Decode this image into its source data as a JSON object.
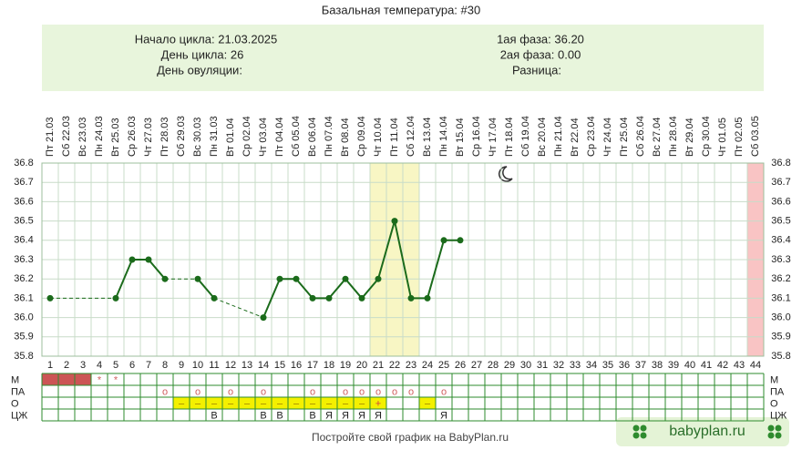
{
  "chart_data": {
    "type": "line",
    "title": "Базальная температура: #30",
    "info": {
      "left": [
        "Начало цикла: 21.03.2025",
        "День цикла: 26",
        "День овуляции:"
      ],
      "right": [
        "1ая фаза: 36.20",
        "2ая фаза: 0.00",
        "Разница:"
      ]
    },
    "categories": [
      "Пт 21.03",
      "Сб 22.03",
      "Вс 23.03",
      "Пн 24.03",
      "Вт 25.03",
      "Ср 26.03",
      "Чт 27.03",
      "Пт 28.03",
      "Сб 29.03",
      "Вс 30.03",
      "Пн 31.03",
      "Вт 01.04",
      "Ср 02.04",
      "Чт 03.04",
      "Пт 04.04",
      "Сб 05.04",
      "Вс 06.04",
      "Пн 07.04",
      "Вт 08.04",
      "Ср 09.04",
      "Чт 10.04",
      "Пт 11.04",
      "Сб 12.04",
      "Вс 13.04",
      "Пн 14.04",
      "Вт 15.04",
      "Ср 16.04",
      "Чт 17.04",
      "Пт 18.04",
      "Сб 19.04",
      "Вс 20.04",
      "Пн 21.04",
      "Вт 22.04",
      "Ср 23.04",
      "Чт 24.04",
      "Пт 25.04",
      "Сб 26.04",
      "Вс 27.04",
      "Пн 28.04",
      "Вт 29.04",
      "Ср 30.04",
      "Чт 01.05",
      "Пт 02.05",
      "Сб 03.05"
    ],
    "days": [
      1,
      2,
      3,
      4,
      5,
      6,
      7,
      8,
      9,
      10,
      11,
      12,
      13,
      14,
      15,
      16,
      17,
      18,
      19,
      20,
      21,
      22,
      23,
      24,
      25,
      26,
      27,
      28,
      29,
      30,
      31,
      32,
      33,
      34,
      35,
      36,
      37,
      38,
      39,
      40,
      41,
      42,
      43,
      44
    ],
    "values": [
      36.1,
      null,
      null,
      null,
      36.1,
      36.3,
      36.3,
      36.2,
      null,
      36.2,
      36.1,
      null,
      null,
      36.0,
      36.2,
      36.2,
      36.1,
      36.1,
      36.2,
      36.1,
      36.2,
      36.5,
      36.1,
      36.1,
      36.4,
      36.4,
      null,
      null,
      null,
      null,
      null,
      null,
      null,
      null,
      null,
      null,
      null,
      null,
      null,
      null,
      null,
      null,
      null,
      null
    ],
    "color": "#1b6b1b",
    "ylim": [
      35.8,
      36.8
    ],
    "yticks": [
      35.8,
      35.9,
      {
        "value": 36,
        "label": "36.0"
      },
      36.1,
      36.2,
      36.3,
      36.4,
      36.5,
      36.6,
      36.7,
      36.8
    ],
    "grid": true,
    "table": {
      "rows": [
        {
          "label": "М",
          "cells": [
            null,
            null,
            null,
            "*",
            "*",
            null,
            null,
            null,
            null,
            null,
            null,
            null,
            null,
            null,
            null,
            null,
            null,
            null,
            null,
            null,
            null,
            null,
            null,
            null,
            null,
            null,
            null,
            null,
            null,
            null,
            null,
            null,
            null,
            null,
            null,
            null,
            null,
            null,
            null,
            null,
            null,
            null,
            null,
            null
          ]
        },
        {
          "label": "ПА",
          "cells": [
            null,
            null,
            null,
            null,
            null,
            null,
            null,
            "o",
            null,
            "o",
            null,
            "o",
            null,
            "o",
            null,
            null,
            "o",
            null,
            "o",
            "o",
            "o",
            "o",
            "o",
            null,
            "o",
            null,
            null,
            null,
            null,
            null,
            null,
            null,
            null,
            null,
            null,
            null,
            null,
            null,
            null,
            null,
            null,
            null,
            null,
            null
          ]
        },
        {
          "label": "О",
          "cells": [
            null,
            null,
            null,
            null,
            null,
            null,
            null,
            null,
            "–",
            "–",
            "–",
            "–",
            "–",
            "–",
            "–",
            "–",
            "–",
            "–",
            "–",
            "–",
            "+",
            null,
            null,
            "–",
            null,
            null,
            null,
            null,
            null,
            null,
            null,
            null,
            null,
            null,
            null,
            null,
            null,
            null,
            null,
            null,
            null,
            null,
            null,
            null
          ]
        },
        {
          "label": "ЦЖ",
          "cells": [
            null,
            null,
            null,
            null,
            null,
            null,
            null,
            null,
            null,
            null,
            "В",
            null,
            null,
            "В",
            "В",
            null,
            "В",
            "Я",
            "Я",
            "Я",
            "Я",
            null,
            null,
            null,
            "Я",
            null,
            null,
            null,
            null,
            null,
            null,
            null,
            null,
            null,
            null,
            null,
            null,
            null,
            null,
            null,
            null,
            null,
            null,
            null
          ]
        }
      ]
    },
    "footer": "Постройте свой график на BabyPlan.ru",
    "badge": "babyplan.ru"
  }
}
